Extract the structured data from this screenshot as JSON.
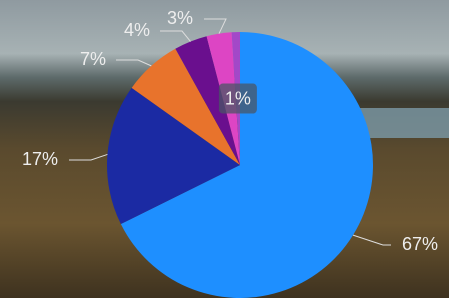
{
  "chart_data": {
    "type": "pie",
    "values": [
      67,
      17,
      7,
      4,
      3,
      1
    ],
    "value_labels": [
      "67%",
      "17%",
      "7%",
      "4%",
      "3%",
      "1%"
    ],
    "colors": [
      "#1e8fff",
      "#1b2aa3",
      "#e8732c",
      "#6a0f8e",
      "#dd45c4",
      "#a348c8"
    ]
  }
}
